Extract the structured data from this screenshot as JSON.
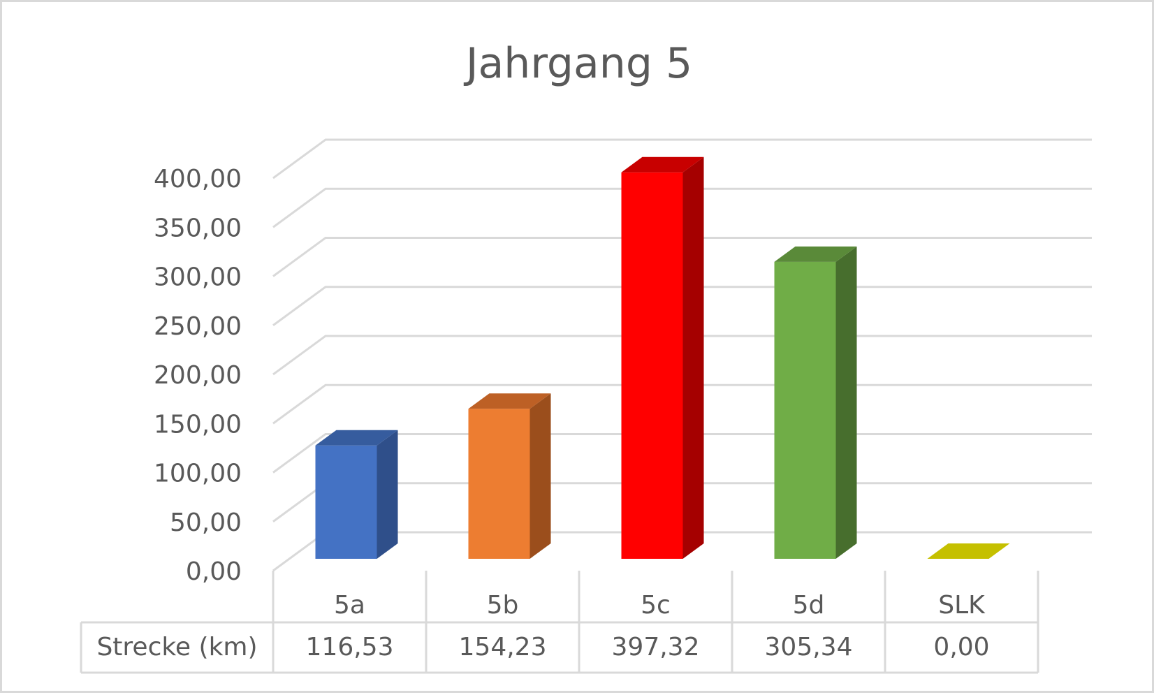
{
  "chart_data": {
    "type": "bar",
    "title": "Jahrgang 5",
    "categories": [
      "5a",
      "5b",
      "5c",
      "5d",
      "SLK"
    ],
    "series": [
      {
        "name": "Strecke (km)",
        "values": [
          116.53,
          154.23,
          397.32,
          305.34,
          0.0
        ]
      }
    ],
    "value_labels": [
      "116,53",
      "154,23",
      "397,32",
      "305,34",
      "0,00"
    ],
    "y_ticks": [
      "0,00",
      "50,00",
      "100,00",
      "150,00",
      "200,00",
      "250,00",
      "300,00",
      "350,00",
      "400,00"
    ],
    "ylim": [
      0,
      400
    ],
    "grid": true,
    "legend": "data-table-below",
    "colors": {
      "front": [
        "#4472c4",
        "#ed7d31",
        "#ff0000",
        "#70ad47",
        "#c5c000"
      ],
      "side": [
        "#2f4f8a",
        "#9b4e1c",
        "#a50000",
        "#476e2d",
        "#8a8700"
      ],
      "top": [
        "#365c9e",
        "#bd6025",
        "#c80000",
        "#5a8a39",
        "#c5c000"
      ],
      "grid": "#d9d9d9",
      "text": "#595959"
    }
  }
}
